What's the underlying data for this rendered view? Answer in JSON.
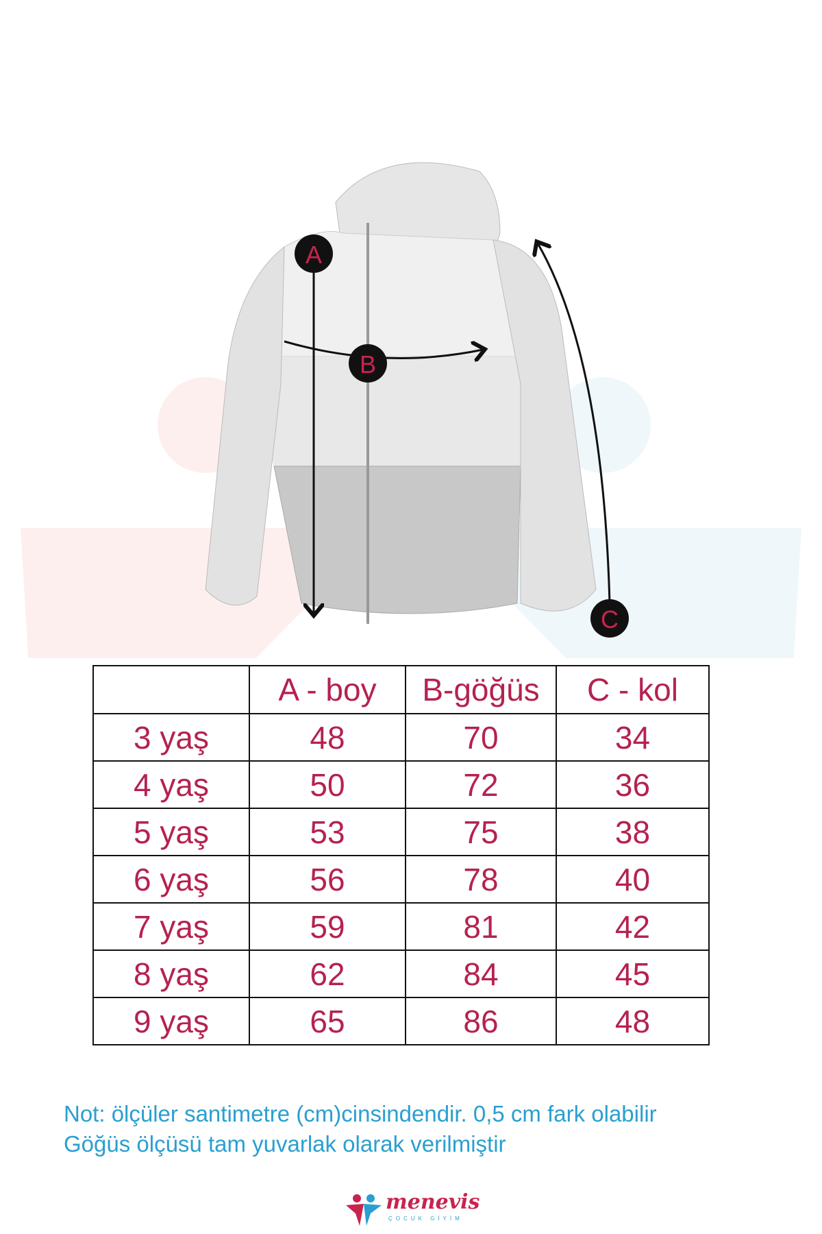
{
  "diagram": {
    "labels": {
      "a": "A",
      "b": "B",
      "c": "C"
    },
    "colors": {
      "marker": "#111111",
      "marker_text": "#c8244e"
    }
  },
  "table": {
    "headers": [
      "",
      "A - boy",
      "B-göğüs",
      "C - kol"
    ],
    "rows": [
      [
        "3 yaş",
        "48",
        "70",
        "34"
      ],
      [
        "4 yaş",
        "50",
        "72",
        "36"
      ],
      [
        "5 yaş",
        "53",
        "75",
        "38"
      ],
      [
        "6 yaş",
        "56",
        "78",
        "40"
      ],
      [
        "7 yaş",
        "59",
        "81",
        "42"
      ],
      [
        "8 yaş",
        "62",
        "84",
        "45"
      ],
      [
        "9 yaş",
        "65",
        "86",
        "48"
      ]
    ],
    "text_color": "#b5224f"
  },
  "notes": {
    "line1": "Not: ölçüler santimetre (cm)cinsindendir. 0,5 cm fark olabilir",
    "line2": "Göğüs ölçüsü tam yuvarlak olarak verilmiştir",
    "color": "#2a9fd0"
  },
  "logo": {
    "name": "menevis",
    "tagline": "ÇOCUK GİYİM"
  }
}
